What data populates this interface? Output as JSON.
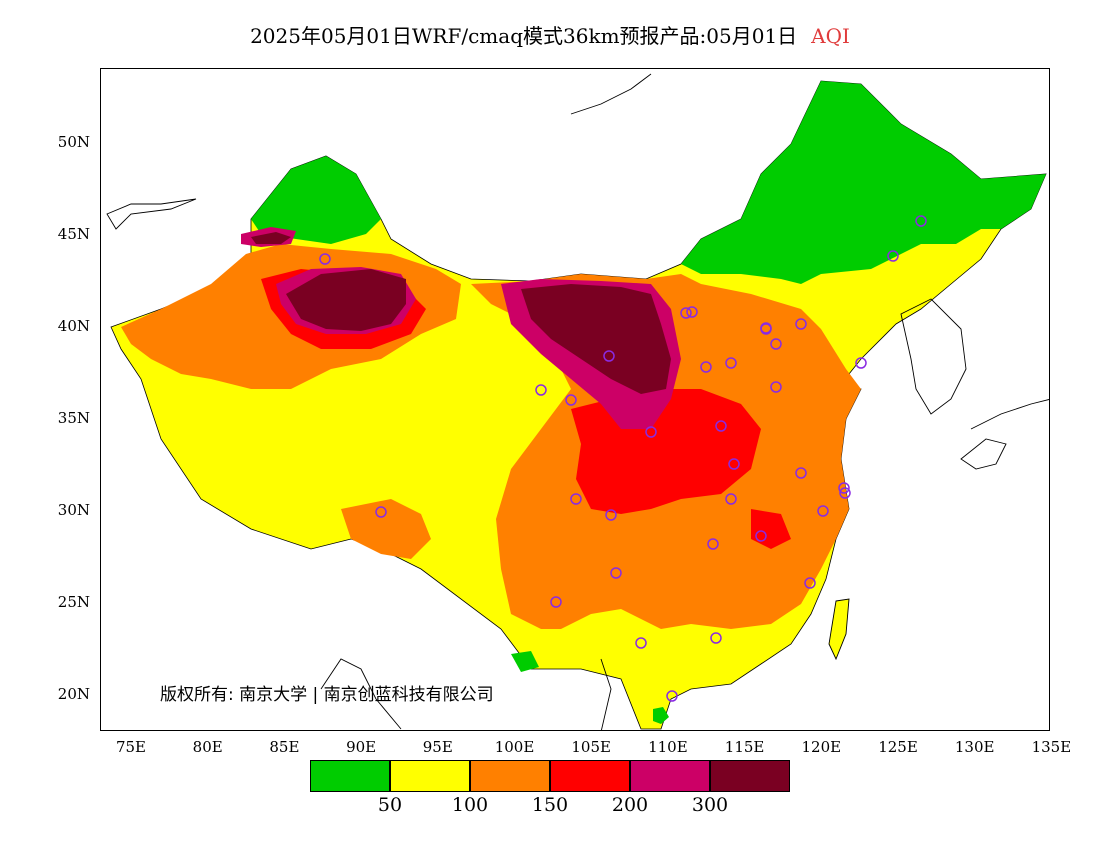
{
  "title": {
    "main": "2025年05月01日WRF/cmaq模式36km预报产品:05月01日",
    "variable": "AQI"
  },
  "map": {
    "latitude_labels": [
      "50N",
      "45N",
      "40N",
      "35N",
      "30N",
      "25N",
      "20N"
    ],
    "longitude_labels": [
      "75E",
      "80E",
      "85E",
      "90E",
      "95E",
      "100E",
      "105E",
      "110E",
      "115E",
      "120E",
      "125E",
      "130E",
      "135E"
    ],
    "copyright": "版权所有: 南京大学 | 南京创蓝科技有限公司"
  },
  "legend": {
    "colors": [
      "#00cc00",
      "#ffff00",
      "#ff8000",
      "#ff0000",
      "#cc0066",
      "#7a0022"
    ],
    "labels": [
      "50",
      "100",
      "150",
      "200",
      "300"
    ]
  },
  "colors": {
    "good": "#00cc00",
    "moderate": "#ffff00",
    "unhealthy_sensitive": "#ff8000",
    "unhealthy": "#ff0000",
    "very_unhealthy": "#cc0066",
    "hazardous": "#7a0022",
    "station_marker": "#8a2be2"
  }
}
